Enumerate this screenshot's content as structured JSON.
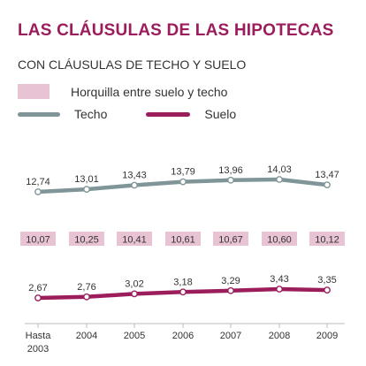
{
  "title": "LAS CLÁUSULAS DE LAS HIPOTECAS",
  "subtitle": "CON CLÁUSULAS DE TECHO Y SUELO",
  "legend": {
    "band_label": "Horquilla entre suelo y techo",
    "techo_label": "Techo",
    "suelo_label": "Suelo"
  },
  "colors": {
    "title": "#9b1d5c",
    "techo": "#7f9598",
    "suelo": "#9b1d5c",
    "band": "#e7c3d3",
    "axis": "#bbbbbb"
  },
  "chart_data": {
    "type": "line",
    "categories": [
      "Hasta 2003",
      "2004",
      "2005",
      "2006",
      "2007",
      "2008",
      "2009"
    ],
    "series": [
      {
        "name": "Techo",
        "values": [
          12.74,
          13.01,
          13.43,
          13.79,
          13.96,
          14.03,
          13.47
        ]
      },
      {
        "name": "Suelo",
        "values": [
          2.67,
          2.76,
          3.02,
          3.18,
          3.29,
          3.43,
          3.35
        ]
      }
    ],
    "range_labels": [
      "10,07",
      "10,25",
      "10,41",
      "10,61",
      "10,67",
      "10,60",
      "10,12"
    ],
    "value_labels": {
      "techo": [
        "12,74",
        "13,01",
        "13,43",
        "13,79",
        "13,96",
        "14,03",
        "13,47"
      ],
      "suelo": [
        "2,67",
        "2,76",
        "3,02",
        "3,18",
        "3,29",
        "3,43",
        "3,35"
      ]
    },
    "category_labels": [
      [
        "Hasta",
        "2003"
      ],
      [
        "2004"
      ],
      [
        "2005"
      ],
      [
        "2006"
      ],
      [
        "2007"
      ],
      [
        "2008"
      ],
      [
        "2009"
      ]
    ],
    "grid": false,
    "legend_position": "top-left"
  }
}
